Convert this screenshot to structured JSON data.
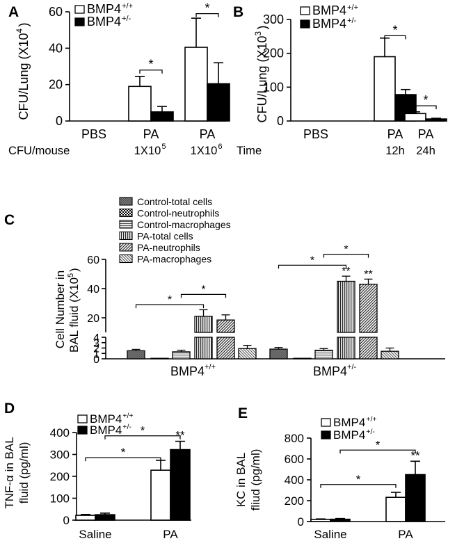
{
  "chart_data": [
    {
      "panel": "A",
      "type": "bar",
      "ylabel": "CFU/Lung (X10",
      "ylabel_exp": "4",
      "ylabel_close": ")",
      "ylim": [
        0,
        60
      ],
      "yticks": [
        0,
        20,
        40,
        60
      ],
      "xrow_label": "CFU/mouse",
      "categories": [
        {
          "label": "PBS",
          "sub": "",
          "sub_exp": ""
        },
        {
          "label": "PA",
          "sub": "1X10",
          "sub_exp": "5"
        },
        {
          "label": "PA",
          "sub": "1X10",
          "sub_exp": "6"
        }
      ],
      "series": [
        {
          "legend": "BMP4",
          "legend_exp": "+/+",
          "fill": "#ffffff",
          "values": [
            0,
            19,
            40.5
          ],
          "errors": [
            0,
            5.5,
            16
          ]
        },
        {
          "legend": "BMP4",
          "legend_exp": "+/-",
          "fill": "#000000",
          "values": [
            0,
            5,
            20.5
          ],
          "errors": [
            0,
            3,
            11.5
          ]
        }
      ],
      "significance": [
        {
          "category": 1,
          "level": 28,
          "label": "*"
        },
        {
          "category": 2,
          "level": 59,
          "label": "*"
        }
      ],
      "legend_position": "top-left"
    },
    {
      "panel": "B",
      "type": "bar",
      "ylabel": "CFU/Lung (X10",
      "ylabel_exp": "3",
      "ylabel_close": ")",
      "ylim": [
        0,
        300
      ],
      "yticks": [
        0,
        100,
        200,
        300
      ],
      "xrow_label": "Time",
      "categories": [
        {
          "label": "PBS",
          "sub": ""
        },
        {
          "label": "PA",
          "sub": "12h"
        },
        {
          "label": "PA",
          "sub": "24h"
        }
      ],
      "series": [
        {
          "legend": "BMP4",
          "legend_exp": "+/+",
          "fill": "#ffffff",
          "values": [
            0,
            190,
            22
          ],
          "errors": [
            0,
            55,
            5
          ]
        },
        {
          "legend": "BMP4",
          "legend_exp": "+/-",
          "fill": "#000000",
          "values": [
            0,
            78,
            6
          ],
          "errors": [
            0,
            15,
            2
          ]
        }
      ],
      "significance": [
        {
          "category": 1,
          "level": 252,
          "label": "*"
        },
        {
          "category": 2,
          "level": 45,
          "label": "*"
        }
      ],
      "legend_position": "top-left"
    },
    {
      "panel": "C",
      "type": "bar",
      "ylabel_line1": "Cell Number in",
      "ylabel_line2": "BAL fluid (X10",
      "ylabel_exp": "5",
      "ylabel_close": ")",
      "axis_break": {
        "lower_range": [
          0,
          4
        ],
        "upper_range": [
          10,
          60
        ]
      },
      "yticks_lower": [
        0,
        1,
        2,
        3,
        4
      ],
      "yticks_upper": [
        20,
        40,
        60
      ],
      "categories": [
        {
          "label": "BMP4",
          "label_exp": "+/+"
        },
        {
          "label": "BMP4",
          "label_exp": "+/-"
        }
      ],
      "series": [
        {
          "name": "Control-total cells",
          "pattern": "dark",
          "values": [
            1.5,
            1.8
          ],
          "errors": [
            0.25,
            0.3
          ]
        },
        {
          "name": "Control-neutrophils",
          "pattern": "check",
          "values": [
            0.1,
            0.1
          ],
          "errors": [
            0,
            0
          ]
        },
        {
          "name": "Control-macrophages",
          "pattern": "hline",
          "values": [
            1.3,
            1.6
          ],
          "errors": [
            0.3,
            0.3
          ]
        },
        {
          "name": "PA-total cells",
          "pattern": "vline",
          "values": [
            21,
            45
          ],
          "errors": [
            4.5,
            3.5
          ]
        },
        {
          "name": "PA-neutrophils",
          "pattern": "diag",
          "values": [
            18.5,
            43
          ],
          "errors": [
            3.5,
            3.5
          ]
        },
        {
          "name": "PA-macrophages",
          "pattern": "rdiag",
          "values": [
            1.9,
            1.4
          ],
          "errors": [
            0.6,
            0.6
          ]
        }
      ],
      "annotations": [
        {
          "category": 1,
          "series": 3,
          "label": "**"
        },
        {
          "category": 1,
          "series": 4,
          "label": "**"
        }
      ],
      "significance": [
        {
          "category": 0,
          "from_series": 0,
          "to_series": 3,
          "level": 29,
          "label": "*"
        },
        {
          "category": 0,
          "from_series": 2,
          "to_series": 4,
          "level": 36,
          "label": "*"
        },
        {
          "category": 1,
          "from_series": 0,
          "to_series": 3,
          "level": 56,
          "label": "*"
        },
        {
          "category": 1,
          "from_series": 2,
          "to_series": 4,
          "level": 63.5,
          "label": "*"
        }
      ],
      "legend_position": "top"
    },
    {
      "panel": "D",
      "type": "bar",
      "ylabel_line1": "TNF-α in BAL",
      "ylabel_line2": "fluid (pg/ml)",
      "ylim": [
        0,
        400
      ],
      "yticks": [
        0,
        100,
        200,
        300,
        400
      ],
      "categories": [
        {
          "label": "Saline"
        },
        {
          "label": "PA"
        }
      ],
      "series": [
        {
          "legend": "BMP4",
          "legend_exp": "+/+",
          "fill": "#ffffff",
          "values": [
            22,
            228
          ],
          "errors": [
            4,
            45
          ]
        },
        {
          "legend": "BMP4",
          "legend_exp": "+/-",
          "fill": "#000000",
          "values": [
            25,
            322
          ],
          "errors": [
            7,
            38
          ]
        }
      ],
      "annotations": [
        {
          "category": 1,
          "series": 1,
          "label": "**"
        }
      ],
      "significance": [
        {
          "from": [
            0,
            0
          ],
          "to": [
            1,
            0
          ],
          "level": 285,
          "label": "*"
        },
        {
          "from": [
            0,
            1
          ],
          "to": [
            1,
            1
          ],
          "level": 385,
          "label": "*"
        }
      ],
      "legend_position": "top-left"
    },
    {
      "panel": "E",
      "type": "bar",
      "ylabel_line1": "KC in BAL",
      "ylabel_line2": "fliud (pg/ml)",
      "ylim": [
        0,
        800
      ],
      "yticks": [
        0,
        200,
        400,
        600,
        800
      ],
      "categories": [
        {
          "label": "Saline"
        },
        {
          "label": "PA"
        }
      ],
      "series": [
        {
          "legend": "BMP4",
          "legend_exp": "+/+",
          "fill": "#ffffff",
          "values": [
            20,
            232
          ],
          "errors": [
            5,
            48
          ]
        },
        {
          "legend": "BMP4",
          "legend_exp": "+/-",
          "fill": "#000000",
          "values": [
            22,
            450
          ],
          "errors": [
            7,
            128
          ]
        }
      ],
      "annotations": [
        {
          "category": 1,
          "series": 1,
          "label": "**"
        }
      ],
      "significance": [
        {
          "from": [
            0,
            0
          ],
          "to": [
            1,
            0
          ],
          "level": 355,
          "label": "*"
        },
        {
          "from": [
            0,
            1
          ],
          "to": [
            1,
            1
          ],
          "level": 685,
          "label": "*"
        }
      ],
      "legend_position": "top-left"
    }
  ]
}
